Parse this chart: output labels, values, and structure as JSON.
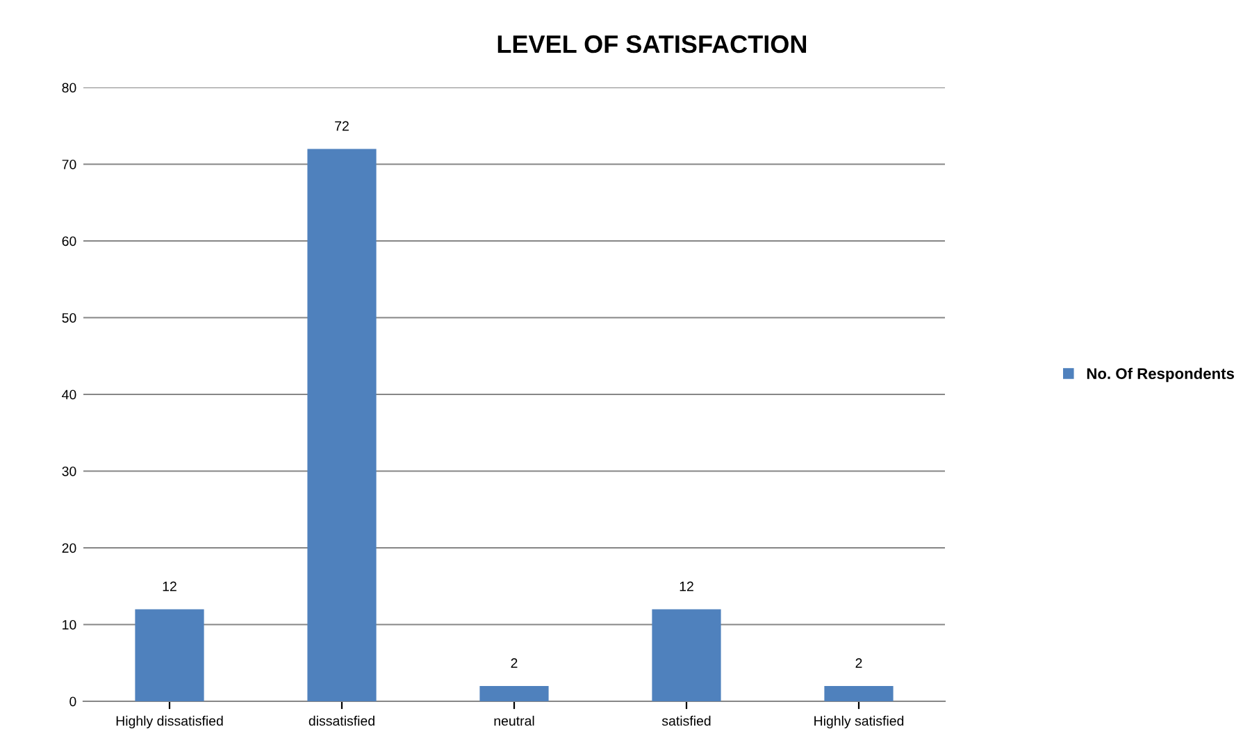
{
  "chart_data": {
    "type": "bar",
    "title": "LEVEL OF SATISFACTION",
    "categories": [
      "Highly dissatisfied",
      "dissatisfied",
      "neutral",
      "satisfied",
      "Highly satisfied"
    ],
    "series": [
      {
        "name": "No. Of Respondents",
        "color": "#4f81bd",
        "values": [
          12,
          72,
          2,
          12,
          2
        ]
      }
    ],
    "ylim": [
      0,
      80
    ],
    "yticks": [
      0,
      10,
      20,
      30,
      40,
      50,
      60,
      70,
      80
    ],
    "grid": "y",
    "legend": "right",
    "data_labels": true
  }
}
